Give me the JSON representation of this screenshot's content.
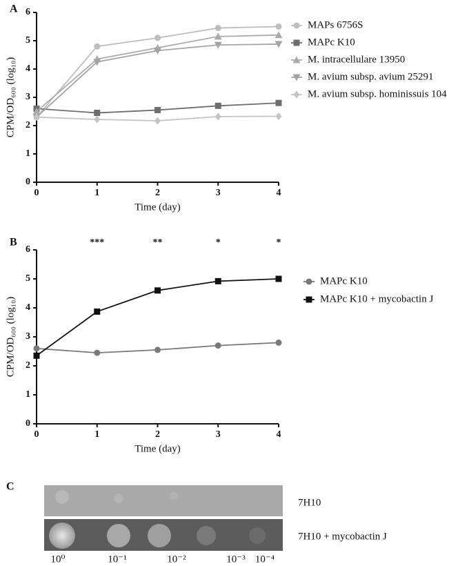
{
  "chart_data": [
    {
      "type": "line",
      "panel": "A",
      "xlabel": "Time (day)",
      "ylabel": "CPM/OD₆₀₀ (log₁₀)",
      "x": [
        0,
        1,
        2,
        3,
        4
      ],
      "xlim": [
        0,
        4
      ],
      "xticks": [
        0,
        1,
        2,
        3,
        4
      ],
      "ylim": [
        0,
        6
      ],
      "yticks": [
        0,
        1,
        2,
        3,
        4,
        5,
        6
      ],
      "series": [
        {
          "name": "MAPs 6756S",
          "color": "#bdbdbd",
          "marker": "circle",
          "values": [
            2.3,
            4.8,
            5.1,
            5.45,
            5.5
          ]
        },
        {
          "name": "MAPc K10",
          "color": "#6e6e6e",
          "marker": "square",
          "values": [
            2.6,
            2.45,
            2.55,
            2.7,
            2.8
          ]
        },
        {
          "name": "M. intracellulare 13950",
          "color": "#ababab",
          "marker": "triangle-up",
          "values": [
            2.5,
            4.35,
            4.75,
            5.15,
            5.2
          ]
        },
        {
          "name": "M. avium subsp. avium 25291",
          "color": "#a4a4a4",
          "marker": "triangle-down",
          "values": [
            2.3,
            4.25,
            4.65,
            4.85,
            4.88
          ]
        },
        {
          "name": "M. avium subsp. hominissuis 104",
          "color": "#c4c4c4",
          "marker": "diamond",
          "values": [
            2.3,
            2.22,
            2.17,
            2.32,
            2.33
          ]
        }
      ]
    },
    {
      "type": "line",
      "panel": "B",
      "xlabel": "Time (day)",
      "ylabel": "CPM/OD₆₀₀ (log₁₀)",
      "x": [
        0,
        1,
        2,
        3,
        4
      ],
      "xlim": [
        0,
        4
      ],
      "xticks": [
        0,
        1,
        2,
        3,
        4
      ],
      "ylim": [
        0,
        6
      ],
      "yticks": [
        0,
        1,
        2,
        3,
        4,
        5,
        6
      ],
      "series": [
        {
          "name": "MAPc K10",
          "color": "#7a7a7a",
          "marker": "circle",
          "values": [
            2.6,
            2.45,
            2.55,
            2.7,
            2.8
          ]
        },
        {
          "name": "MAPc K10 + mycobactin J",
          "color": "#111111",
          "marker": "square",
          "values": [
            2.35,
            3.87,
            4.6,
            4.92,
            5.0
          ]
        }
      ],
      "annotations": [
        {
          "x": 1,
          "text": "***"
        },
        {
          "x": 2,
          "text": "**"
        },
        {
          "x": 3,
          "text": "*"
        },
        {
          "x": 4,
          "text": "*"
        }
      ]
    }
  ],
  "panel_c": {
    "panel": "C",
    "rows": [
      "7H10",
      "7H10 + mycobactin J"
    ],
    "dilutions": [
      "10⁰",
      "10⁻¹",
      "10⁻²",
      "10⁻³",
      "10⁻⁴"
    ]
  }
}
